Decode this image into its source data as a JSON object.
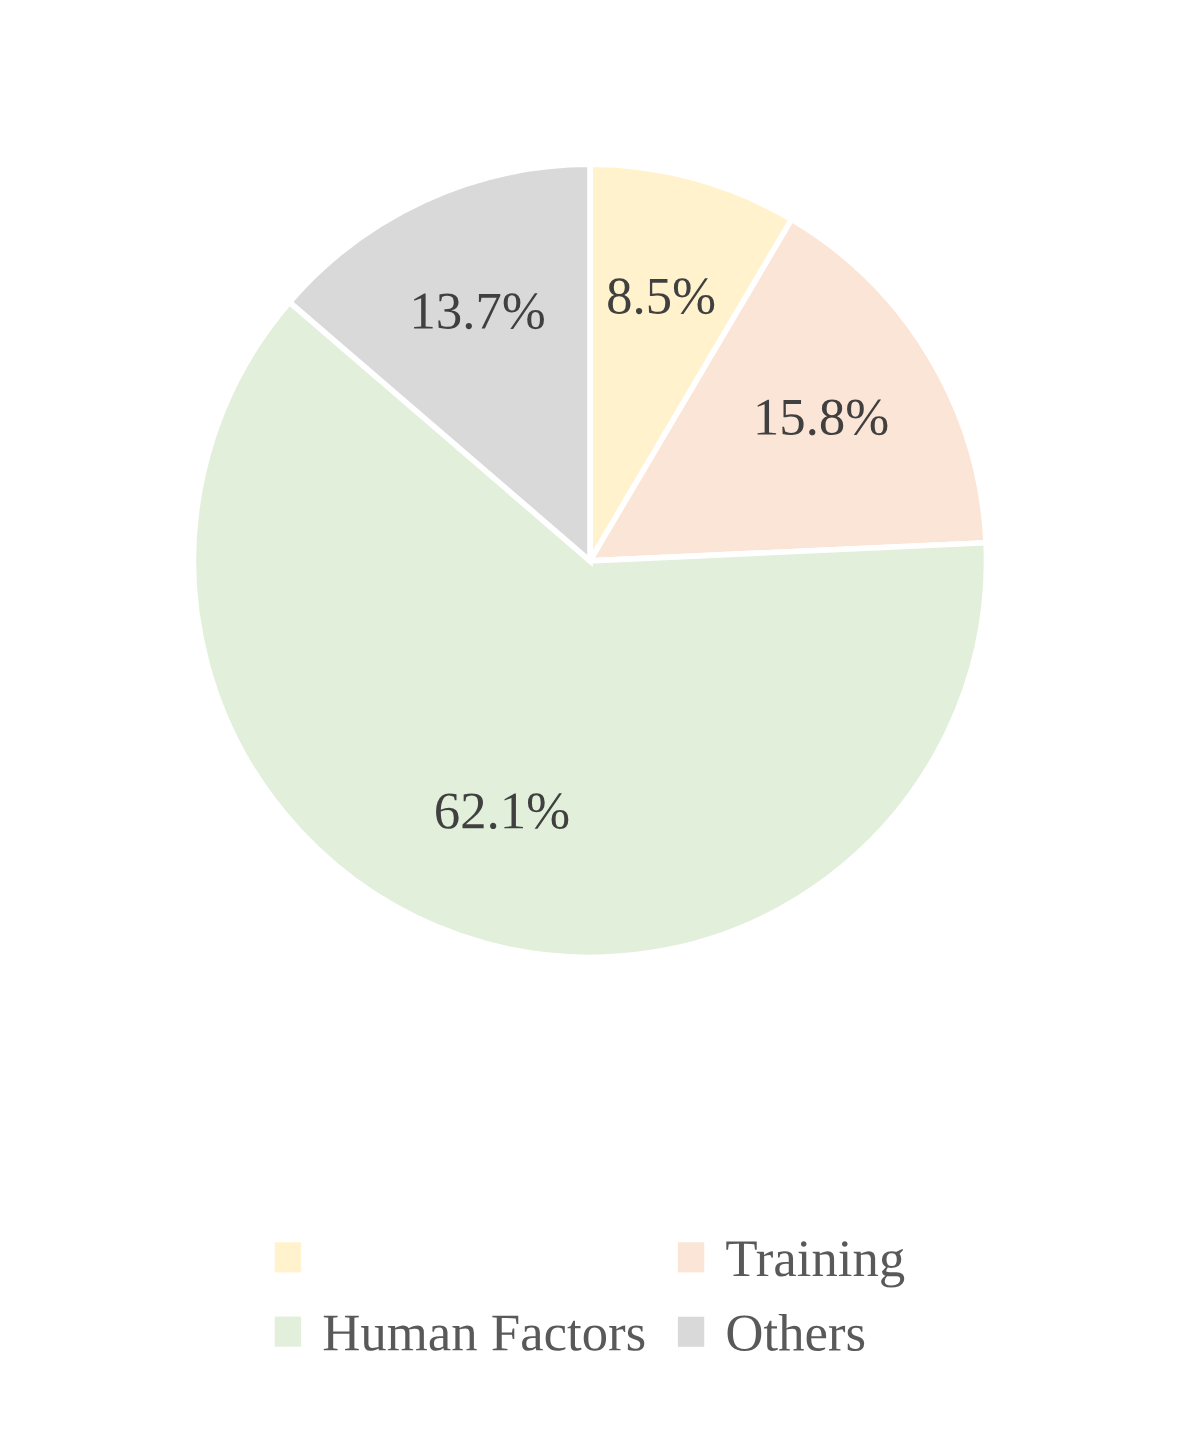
{
  "chart_data": {
    "type": "pie",
    "categories": [
      null,
      "Training",
      "Human Factors",
      "Others"
    ],
    "values": [
      8.5,
      15.8,
      62.1,
      13.7
    ],
    "value_labels": [
      "8.5%",
      "15.8%",
      "62.1%",
      "13.7%"
    ],
    "colors": [
      "#fff2cc",
      "#fbe5d6",
      "#e2efda",
      "#d9d9d9"
    ],
    "legend": "bottom"
  }
}
